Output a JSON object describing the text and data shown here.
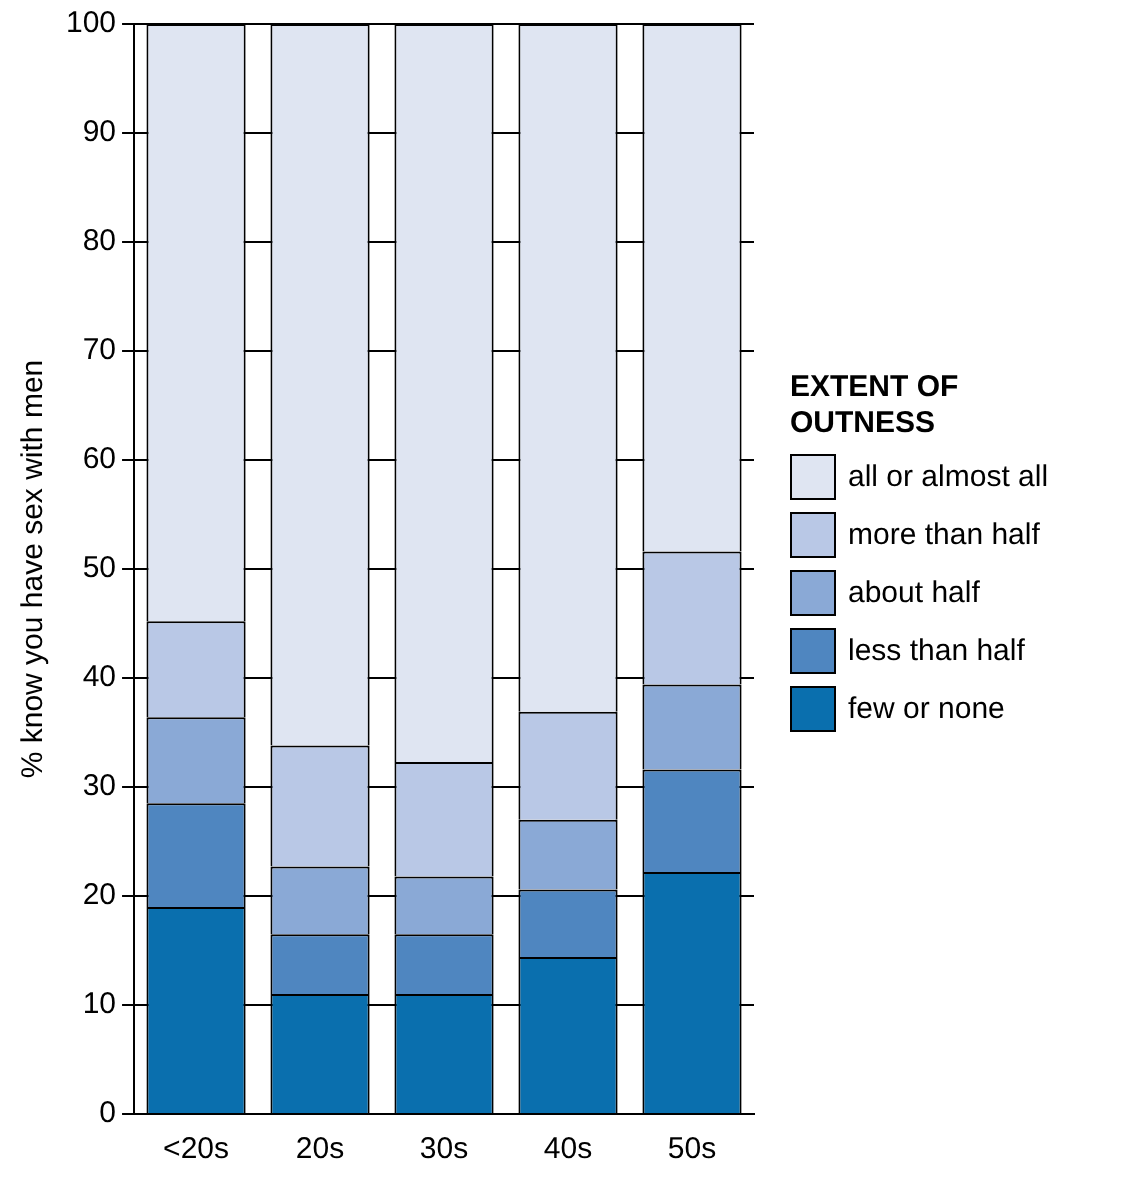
{
  "chart_data": {
    "type": "bar",
    "stacked": true,
    "ylabel": "% know you have sex with men",
    "legend_title": "EXTENT OF OUTNESS",
    "legend": "right",
    "grid": "y",
    "categories": [
      "<20s",
      "20s",
      "30s",
      "40s",
      "50s"
    ],
    "ylim": [
      0,
      100
    ],
    "yticks": [
      0,
      10,
      20,
      30,
      40,
      50,
      60,
      70,
      80,
      90,
      100
    ],
    "series": [
      {
        "name": "few or none",
        "color": "#0a6fae",
        "values": [
          19,
          11,
          11,
          14.4,
          22.2
        ]
      },
      {
        "name": "less than half",
        "color": "#4f86c0",
        "values": [
          9.5,
          5.5,
          5.5,
          6.2,
          9.4
        ]
      },
      {
        "name": "about half",
        "color": "#8aa9d6",
        "values": [
          7.9,
          6.2,
          5.3,
          6.4,
          7.8
        ]
      },
      {
        "name": "more than half",
        "color": "#b9c8e6",
        "values": [
          8.8,
          11.1,
          10.5,
          9.9,
          12.2
        ]
      },
      {
        "name": "all or almost all",
        "color": "#dfe5f2",
        "values": [
          54.8,
          66.2,
          67.7,
          63.1,
          48.4
        ]
      }
    ]
  }
}
